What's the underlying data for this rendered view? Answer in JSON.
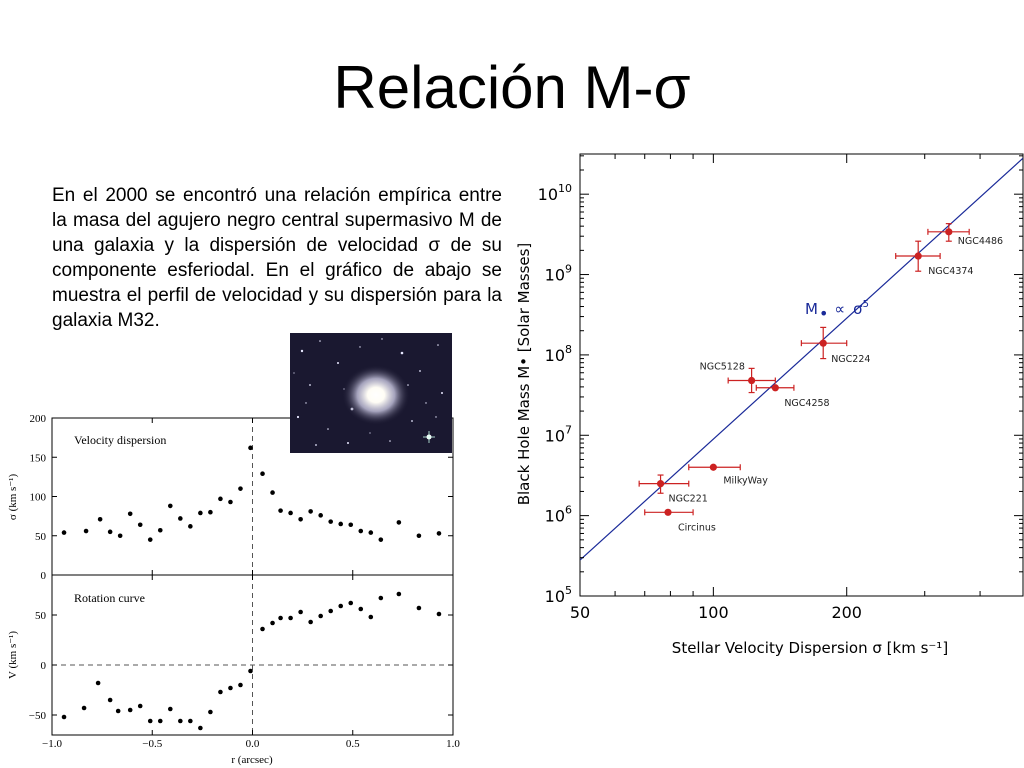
{
  "slide": {
    "title": "Relación M-σ",
    "paragraph": "En el 2000 se encontró una relación empírica entre la masa del agujero negro central supermasivo M de una galaxia y la dispersión de velocidad σ de su componente esferiodal. En el gráfico de abajo se muestra el perfil de velocidad y su dispersión para la galaxia M32."
  },
  "colors": {
    "red_points": "#cc2222",
    "fit_line": "#1a2a99",
    "relation_label": "#1a2a99",
    "photo_bg": "#1a1830"
  },
  "chart_data": [
    {
      "type": "scatter",
      "panel": "top",
      "title": "Velocity dispersion",
      "xlabel": "r (arcsec)",
      "ylabel": "σ (km s⁻¹)",
      "xlim": [
        -1.0,
        1.0
      ],
      "ylim": [
        0,
        200
      ],
      "xticks": [
        "−1.0",
        "−0.5",
        "0.0",
        "0.5",
        "1.0"
      ],
      "yticks": [
        "0",
        "50",
        "100",
        "150",
        "200"
      ],
      "x": [
        -0.94,
        -0.83,
        -0.76,
        -0.71,
        -0.66,
        -0.61,
        -0.56,
        -0.51,
        -0.46,
        -0.41,
        -0.36,
        -0.31,
        -0.26,
        -0.21,
        -0.16,
        -0.11,
        -0.06,
        -0.01,
        0.05,
        0.1,
        0.14,
        0.19,
        0.24,
        0.29,
        0.34,
        0.39,
        0.44,
        0.49,
        0.54,
        0.59,
        0.64,
        0.73,
        0.83,
        0.93
      ],
      "y": [
        54,
        56,
        71,
        55,
        50,
        78,
        64,
        45,
        57,
        88,
        72,
        62,
        79,
        80,
        97,
        93,
        110,
        162,
        129,
        105,
        82,
        79,
        71,
        81,
        76,
        68,
        65,
        64,
        56,
        54,
        45,
        67,
        50,
        53
      ]
    },
    {
      "type": "scatter",
      "panel": "bottom",
      "title": "Rotation curve",
      "xlabel": "r (arcsec)",
      "ylabel": "V (km s⁻¹)",
      "xlim": [
        -1.0,
        1.0
      ],
      "ylim": [
        -70,
        90
      ],
      "xticks": [
        "−1.0",
        "−0.5",
        "0.0",
        "0.5",
        "1.0"
      ],
      "yticks": [
        "−50",
        "0",
        "50"
      ],
      "x": [
        -0.94,
        -0.84,
        -0.77,
        -0.71,
        -0.67,
        -0.61,
        -0.56,
        -0.51,
        -0.46,
        -0.41,
        -0.36,
        -0.31,
        -0.26,
        -0.21,
        -0.16,
        -0.11,
        -0.06,
        -0.01,
        0.05,
        0.1,
        0.14,
        0.19,
        0.24,
        0.29,
        0.34,
        0.39,
        0.44,
        0.49,
        0.54,
        0.59,
        0.64,
        0.73,
        0.83,
        0.93
      ],
      "y": [
        -52,
        -43,
        -18,
        -35,
        -46,
        -45,
        -41,
        -56,
        -56,
        -44,
        -56,
        -56,
        -63,
        -47,
        -27,
        -23,
        -20,
        -6,
        36,
        42,
        47,
        47,
        53,
        43,
        49,
        54,
        59,
        62,
        56,
        48,
        67,
        71,
        57,
        51
      ]
    },
    {
      "type": "scatter",
      "title": "",
      "xlabel": "Stellar Velocity Dispersion σ [km s⁻¹]",
      "ylabel": "Black Hole Mass M• [Solar Masses]",
      "x_scale": "log",
      "y_scale": "log",
      "xlim": [
        50,
        500
      ],
      "ylim": [
        100000,
        31622776602
      ],
      "xticks": [
        {
          "value": 50,
          "label": "50"
        },
        {
          "value": 100,
          "label": "100"
        },
        {
          "value": 200,
          "label": "200"
        }
      ],
      "yticks": [
        {
          "value": 100000,
          "base": "10",
          "exp": "5"
        },
        {
          "value": 1000000,
          "base": "10",
          "exp": "6"
        },
        {
          "value": 10000000,
          "base": "10",
          "exp": "7"
        },
        {
          "value": 100000000,
          "base": "10",
          "exp": "8"
        },
        {
          "value": 1000000000,
          "base": "10",
          "exp": "9"
        },
        {
          "value": 10000000000,
          "base": "10",
          "exp": "10"
        }
      ],
      "relation": {
        "text": "M• ∝ σ⁵",
        "M": "M",
        "prop": "∝",
        "sigma": "σ",
        "exp": "5"
      },
      "fit_line": {
        "x": [
          50,
          500
        ],
        "y": [
          280000,
          28000000000
        ]
      },
      "points": [
        {
          "label": "Circinus",
          "sigma": 79,
          "mass": 1100000,
          "sigma_err": [
            70,
            90
          ]
        },
        {
          "label": "NGC221",
          "sigma": 76,
          "mass": 2500000,
          "sigma_err": [
            68,
            88
          ],
          "mass_err": [
            1900000,
            3200000
          ]
        },
        {
          "label": "MilkyWay",
          "sigma": 100,
          "mass": 4000000,
          "sigma_err": [
            88,
            115
          ]
        },
        {
          "label": "NGC4258",
          "sigma": 138,
          "mass": 39000000,
          "sigma_err": [
            125,
            152
          ]
        },
        {
          "label": "NGC5128",
          "sigma": 122,
          "mass": 48000000,
          "sigma_err": [
            108,
            138
          ],
          "mass_err": [
            34000000,
            68000000
          ]
        },
        {
          "label": "NGC224",
          "sigma": 177,
          "mass": 140000000,
          "sigma_err": [
            158,
            200
          ],
          "mass_err": [
            90000000,
            220000000
          ]
        },
        {
          "label": "NGC4374",
          "sigma": 290,
          "mass": 1700000000,
          "sigma_err": [
            258,
            325
          ],
          "mass_err": [
            1100000000,
            2600000000
          ]
        },
        {
          "label": "NGC4486",
          "sigma": 340,
          "mass": 3400000000,
          "sigma_err": [
            305,
            378
          ],
          "mass_err": [
            2600000000,
            4300000000
          ]
        }
      ]
    }
  ]
}
